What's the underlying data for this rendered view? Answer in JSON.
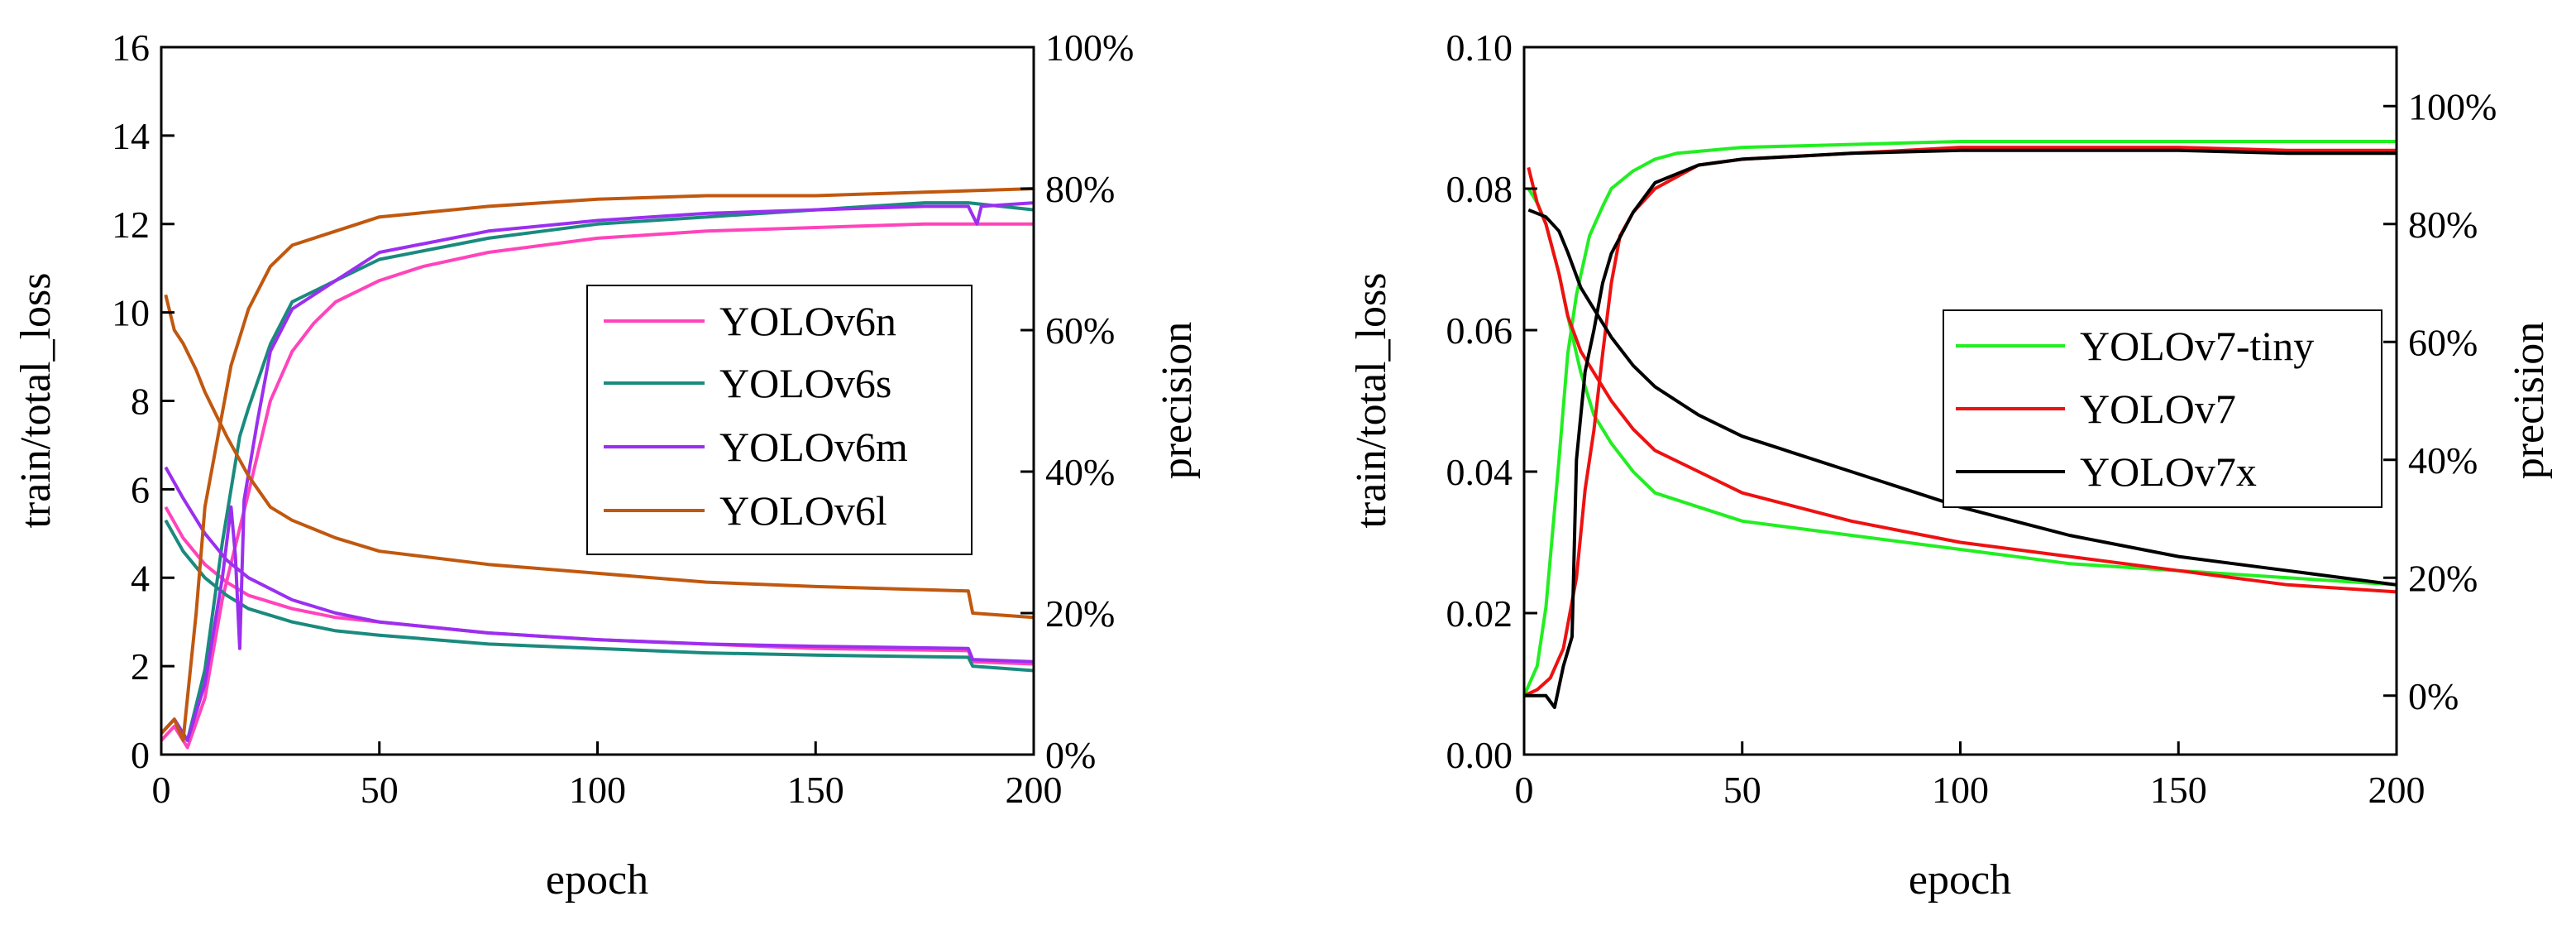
{
  "chart_data": [
    {
      "type": "line",
      "xlabel": "epoch",
      "ylabel_left": "train/total_loss",
      "ylabel_right": "precision",
      "xlim": [
        0,
        200
      ],
      "ylim_left": [
        0,
        16
      ],
      "ylim_right": [
        0,
        100
      ],
      "x_ticks": [
        "0",
        "50",
        "100",
        "150",
        "200"
      ],
      "y_ticks_left": [
        "0",
        "2",
        "4",
        "6",
        "8",
        "10",
        "12",
        "14",
        "16"
      ],
      "y_ticks_right": [
        "0%",
        "20%",
        "40%",
        "60%",
        "80%",
        "100%"
      ],
      "legend_position": "center-right",
      "series": [
        {
          "name": "YOLOv6n",
          "color": "#ff44bb",
          "loss": [
            [
              1,
              5.6
            ],
            [
              5,
              4.9
            ],
            [
              10,
              4.3
            ],
            [
              15,
              3.9
            ],
            [
              20,
              3.6
            ],
            [
              30,
              3.3
            ],
            [
              40,
              3.1
            ],
            [
              50,
              3.0
            ],
            [
              75,
              2.75
            ],
            [
              100,
              2.6
            ],
            [
              125,
              2.5
            ],
            [
              150,
              2.4
            ],
            [
              185,
              2.35
            ],
            [
              186,
              2.1
            ],
            [
              200,
              2.05
            ]
          ],
          "precision": [
            [
              0,
              2
            ],
            [
              3,
              4
            ],
            [
              6,
              1
            ],
            [
              10,
              8
            ],
            [
              14,
              22
            ],
            [
              18,
              32
            ],
            [
              20,
              37
            ],
            [
              25,
              50
            ],
            [
              30,
              57
            ],
            [
              35,
              61
            ],
            [
              40,
              64
            ],
            [
              50,
              67
            ],
            [
              60,
              69
            ],
            [
              75,
              71
            ],
            [
              100,
              73
            ],
            [
              125,
              74
            ],
            [
              150,
              74.5
            ],
            [
              175,
              75
            ],
            [
              200,
              75
            ]
          ]
        },
        {
          "name": "YOLOv6s",
          "color": "#1a8a7e",
          "loss": [
            [
              1,
              5.3
            ],
            [
              5,
              4.6
            ],
            [
              10,
              4.0
            ],
            [
              15,
              3.6
            ],
            [
              20,
              3.3
            ],
            [
              30,
              3.0
            ],
            [
              40,
              2.8
            ],
            [
              50,
              2.7
            ],
            [
              75,
              2.5
            ],
            [
              100,
              2.4
            ],
            [
              125,
              2.3
            ],
            [
              150,
              2.25
            ],
            [
              185,
              2.2
            ],
            [
              186,
              2.0
            ],
            [
              200,
              1.9
            ]
          ],
          "precision": [
            [
              0,
              3
            ],
            [
              3,
              5
            ],
            [
              6,
              2
            ],
            [
              10,
              12
            ],
            [
              14,
              30
            ],
            [
              18,
              45
            ],
            [
              20,
              49
            ],
            [
              25,
              58
            ],
            [
              30,
              64
            ],
            [
              40,
              67
            ],
            [
              50,
              70
            ],
            [
              75,
              73
            ],
            [
              100,
              75
            ],
            [
              125,
              76
            ],
            [
              150,
              77
            ],
            [
              175,
              78
            ],
            [
              185,
              78
            ],
            [
              200,
              77
            ]
          ]
        },
        {
          "name": "YOLOv6m",
          "color": "#9b2ff0",
          "loss": [
            [
              1,
              6.5
            ],
            [
              5,
              5.8
            ],
            [
              10,
              5.0
            ],
            [
              15,
              4.4
            ],
            [
              20,
              4.0
            ],
            [
              30,
              3.5
            ],
            [
              40,
              3.2
            ],
            [
              50,
              3.0
            ],
            [
              75,
              2.75
            ],
            [
              100,
              2.6
            ],
            [
              125,
              2.5
            ],
            [
              150,
              2.45
            ],
            [
              185,
              2.4
            ],
            [
              186,
              2.15
            ],
            [
              200,
              2.1
            ]
          ],
          "precision": [
            [
              0,
              3
            ],
            [
              3,
              5
            ],
            [
              6,
              2
            ],
            [
              10,
              10
            ],
            [
              14,
              25
            ],
            [
              16,
              35
            ],
            [
              17,
              28
            ],
            [
              18,
              15
            ],
            [
              19,
              36
            ],
            [
              22,
              47
            ],
            [
              25,
              57
            ],
            [
              30,
              63
            ],
            [
              40,
              67
            ],
            [
              50,
              71
            ],
            [
              75,
              74
            ],
            [
              100,
              75.5
            ],
            [
              125,
              76.5
            ],
            [
              150,
              77
            ],
            [
              175,
              77.5
            ],
            [
              185,
              77.5
            ],
            [
              187,
              75
            ],
            [
              188,
              77.5
            ],
            [
              200,
              78
            ]
          ]
        },
        {
          "name": "YOLOv6l",
          "color": "#c0580f",
          "loss": [
            [
              1,
              10.4
            ],
            [
              3,
              9.6
            ],
            [
              5,
              9.3
            ],
            [
              8,
              8.7
            ],
            [
              10,
              8.2
            ],
            [
              15,
              7.2
            ],
            [
              20,
              6.3
            ],
            [
              25,
              5.6
            ],
            [
              30,
              5.3
            ],
            [
              40,
              4.9
            ],
            [
              50,
              4.6
            ],
            [
              75,
              4.3
            ],
            [
              100,
              4.1
            ],
            [
              125,
              3.9
            ],
            [
              150,
              3.8
            ],
            [
              185,
              3.7
            ],
            [
              186,
              3.2
            ],
            [
              200,
              3.1
            ]
          ],
          "precision": [
            [
              0,
              3
            ],
            [
              3,
              5
            ],
            [
              5,
              2
            ],
            [
              8,
              20
            ],
            [
              10,
              35
            ],
            [
              13,
              45
            ],
            [
              16,
              55
            ],
            [
              20,
              63
            ],
            [
              25,
              69
            ],
            [
              30,
              72
            ],
            [
              40,
              74
            ],
            [
              50,
              76
            ],
            [
              75,
              77.5
            ],
            [
              100,
              78.5
            ],
            [
              125,
              79
            ],
            [
              150,
              79
            ],
            [
              175,
              79.5
            ],
            [
              200,
              80
            ]
          ]
        }
      ]
    },
    {
      "type": "line",
      "xlabel": "epoch",
      "ylabel_left": "train/total_loss",
      "ylabel_right": "precision",
      "xlim": [
        0,
        200
      ],
      "ylim_left": [
        0,
        0.1
      ],
      "ylim_right": [
        -10,
        110
      ],
      "x_ticks": [
        "0",
        "50",
        "100",
        "150",
        "200"
      ],
      "y_ticks_left": [
        "0.00",
        "0.02",
        "0.04",
        "0.06",
        "0.08",
        "0.10"
      ],
      "y_ticks_right": [
        "0%",
        "20%",
        "40%",
        "60%",
        "80%",
        "100%"
      ],
      "legend_position": "center-right",
      "series": [
        {
          "name": "YOLOv7-tiny",
          "color": "#22ee22",
          "loss": [
            [
              1,
              0.08
            ],
            [
              3,
              0.078
            ],
            [
              5,
              0.075
            ],
            [
              8,
              0.068
            ],
            [
              10,
              0.062
            ],
            [
              13,
              0.054
            ],
            [
              16,
              0.048
            ],
            [
              20,
              0.044
            ],
            [
              25,
              0.04
            ],
            [
              30,
              0.037
            ],
            [
              40,
              0.035
            ],
            [
              50,
              0.033
            ],
            [
              75,
              0.031
            ],
            [
              100,
              0.029
            ],
            [
              125,
              0.027
            ],
            [
              150,
              0.026
            ],
            [
              175,
              0.025
            ],
            [
              200,
              0.024
            ]
          ],
          "precision": [
            [
              0,
              0
            ],
            [
              3,
              5
            ],
            [
              5,
              15
            ],
            [
              8,
              40
            ],
            [
              10,
              58
            ],
            [
              12,
              68
            ],
            [
              15,
              78
            ],
            [
              18,
              83
            ],
            [
              20,
              86
            ],
            [
              25,
              89
            ],
            [
              30,
              91
            ],
            [
              35,
              92
            ],
            [
              50,
              93
            ],
            [
              75,
              93.5
            ],
            [
              100,
              94
            ],
            [
              125,
              94
            ],
            [
              150,
              94
            ],
            [
              175,
              94
            ],
            [
              200,
              94
            ]
          ]
        },
        {
          "name": "YOLOv7",
          "color": "#ee1111",
          "loss": [
            [
              1,
              0.083
            ],
            [
              3,
              0.078
            ],
            [
              5,
              0.075
            ],
            [
              8,
              0.068
            ],
            [
              10,
              0.062
            ],
            [
              13,
              0.057
            ],
            [
              15,
              0.055
            ],
            [
              20,
              0.05
            ],
            [
              25,
              0.046
            ],
            [
              30,
              0.043
            ],
            [
              40,
              0.04
            ],
            [
              50,
              0.037
            ],
            [
              75,
              0.033
            ],
            [
              100,
              0.03
            ],
            [
              125,
              0.028
            ],
            [
              150,
              0.026
            ],
            [
              175,
              0.024
            ],
            [
              200,
              0.023
            ]
          ],
          "precision": [
            [
              0,
              0
            ],
            [
              3,
              1
            ],
            [
              6,
              3
            ],
            [
              9,
              8
            ],
            [
              12,
              20
            ],
            [
              14,
              35
            ],
            [
              16,
              45
            ],
            [
              18,
              58
            ],
            [
              20,
              70
            ],
            [
              22,
              78
            ],
            [
              25,
              82
            ],
            [
              30,
              86
            ],
            [
              40,
              90
            ],
            [
              50,
              91
            ],
            [
              75,
              92
            ],
            [
              100,
              93
            ],
            [
              125,
              93
            ],
            [
              150,
              93
            ],
            [
              175,
              92.5
            ],
            [
              200,
              92.5
            ]
          ]
        },
        {
          "name": "YOLOv7x",
          "color": "#000000",
          "loss": [
            [
              1,
              0.077
            ],
            [
              5,
              0.076
            ],
            [
              8,
              0.074
            ],
            [
              10,
              0.071
            ],
            [
              13,
              0.066
            ],
            [
              15,
              0.064
            ],
            [
              20,
              0.059
            ],
            [
              25,
              0.055
            ],
            [
              30,
              0.052
            ],
            [
              40,
              0.048
            ],
            [
              50,
              0.045
            ],
            [
              75,
              0.04
            ],
            [
              100,
              0.035
            ],
            [
              125,
              0.031
            ],
            [
              150,
              0.028
            ],
            [
              175,
              0.026
            ],
            [
              200,
              0.024
            ]
          ],
          "precision": [
            [
              0,
              0
            ],
            [
              5,
              0
            ],
            [
              7,
              -2
            ],
            [
              9,
              5
            ],
            [
              11,
              10
            ],
            [
              12,
              40
            ],
            [
              14,
              55
            ],
            [
              16,
              62
            ],
            [
              18,
              70
            ],
            [
              20,
              75
            ],
            [
              25,
              82
            ],
            [
              30,
              87
            ],
            [
              40,
              90
            ],
            [
              50,
              91
            ],
            [
              75,
              92
            ],
            [
              100,
              92.5
            ],
            [
              125,
              92.5
            ],
            [
              150,
              92.5
            ],
            [
              175,
              92
            ],
            [
              200,
              92
            ]
          ]
        }
      ]
    }
  ]
}
